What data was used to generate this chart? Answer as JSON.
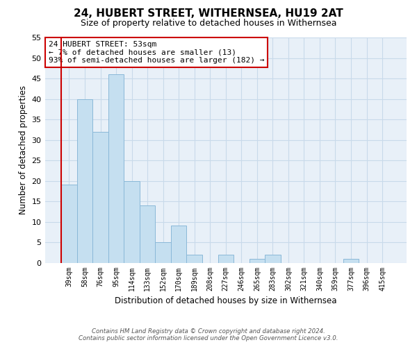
{
  "title": "24, HUBERT STREET, WITHERNSEA, HU19 2AT",
  "subtitle": "Size of property relative to detached houses in Withernsea",
  "xlabel": "Distribution of detached houses by size in Withernsea",
  "ylabel": "Number of detached properties",
  "bar_labels": [
    "39sqm",
    "58sqm",
    "76sqm",
    "95sqm",
    "114sqm",
    "133sqm",
    "152sqm",
    "170sqm",
    "189sqm",
    "208sqm",
    "227sqm",
    "246sqm",
    "265sqm",
    "283sqm",
    "302sqm",
    "321sqm",
    "340sqm",
    "359sqm",
    "377sqm",
    "396sqm",
    "415sqm"
  ],
  "bar_values": [
    19,
    40,
    32,
    46,
    20,
    14,
    5,
    9,
    2,
    0,
    2,
    0,
    1,
    2,
    0,
    0,
    0,
    0,
    1,
    0,
    0
  ],
  "bar_color": "#c5dff0",
  "bar_edge_color": "#8ab8d8",
  "highlight_edge_color": "#cc0000",
  "vline_color": "#cc0000",
  "ylim": [
    0,
    55
  ],
  "yticks": [
    0,
    5,
    10,
    15,
    20,
    25,
    30,
    35,
    40,
    45,
    50,
    55
  ],
  "annotation_line1": "24 HUBERT STREET: 53sqm",
  "annotation_line2": "← 7% of detached houses are smaller (13)",
  "annotation_line3": "93% of semi-detached houses are larger (182) →",
  "annotation_box_edgecolor": "#cc0000",
  "footer_line1": "Contains HM Land Registry data © Crown copyright and database right 2024.",
  "footer_line2": "Contains public sector information licensed under the Open Government Licence v3.0.",
  "grid_color": "#c8daea",
  "background_color": "#e8f0f8"
}
